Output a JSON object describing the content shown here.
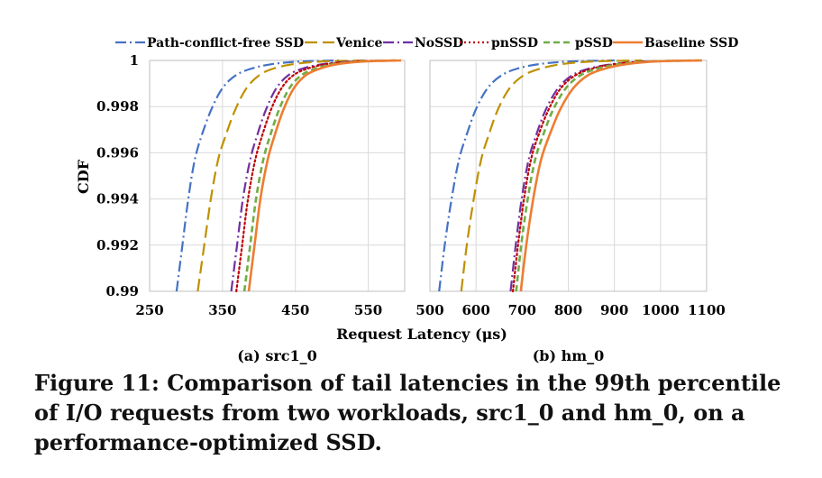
{
  "figure": {
    "caption": "Figure 11: Comparison of tail latencies in the 99th percentile of I/O requests from two workloads, src1_0 and hm_0, on a performance-optimized SSD.",
    "ylabel": "CDF",
    "xlabel": "Request Latency (μs)"
  },
  "legend": [
    {
      "name": "Path-conflict-free SSD",
      "color": "#4472C4",
      "dash": "dashdot"
    },
    {
      "name": "Venice",
      "color": "#BF9000",
      "dash": "longdash"
    },
    {
      "name": "NoSSD",
      "color": "#7030A0",
      "dash": "dashdot"
    },
    {
      "name": "pnSSD",
      "color": "#C00000",
      "dash": "dotted"
    },
    {
      "name": "pSSD",
      "color": "#70AD47",
      "dash": "dashed"
    },
    {
      "name": "Baseline SSD",
      "color": "#ED7D31",
      "dash": "solid"
    }
  ],
  "chart_data": [
    {
      "type": "line",
      "panel_label": "(a) src1_0",
      "xlim": [
        250,
        600
      ],
      "ylim": [
        0.99,
        1.0
      ],
      "xticks": [
        250,
        350,
        450,
        550
      ],
      "xtick_labels": [
        "250",
        "350",
        "450",
        "550"
      ],
      "yticks": [
        0.99,
        0.992,
        0.994,
        0.996,
        0.998,
        1.0
      ],
      "ytick_labels": [
        "0.99",
        "0.992",
        "0.994",
        "0.996",
        "0.998",
        "1"
      ],
      "series": [
        {
          "name": "Path-conflict-free SSD",
          "x": [
            287,
            295,
            303,
            312,
            322,
            335,
            350,
            368,
            390,
            420,
            460,
            510
          ],
          "y": [
            0.99,
            0.992,
            0.994,
            0.9957,
            0.9968,
            0.9979,
            0.9988,
            0.99935,
            0.99965,
            0.99985,
            0.99996,
            1.0
          ]
        },
        {
          "name": "Venice",
          "x": [
            316,
            325,
            334,
            344,
            355,
            368,
            383,
            400,
            420,
            450,
            490,
            550
          ],
          "y": [
            0.99,
            0.992,
            0.994,
            0.9957,
            0.9968,
            0.9979,
            0.9988,
            0.99935,
            0.99965,
            0.99985,
            0.99996,
            1.0
          ]
        },
        {
          "name": "NoSSD",
          "x": [
            362,
            370,
            378,
            388,
            398,
            410,
            424,
            440,
            460,
            490,
            530,
            580
          ],
          "y": [
            0.99,
            0.992,
            0.994,
            0.9957,
            0.9968,
            0.9979,
            0.9988,
            0.99935,
            0.99965,
            0.99985,
            0.99996,
            1.0
          ]
        },
        {
          "name": "pnSSD",
          "x": [
            369,
            377,
            385,
            395,
            405,
            417,
            431,
            447,
            467,
            495,
            535,
            585
          ],
          "y": [
            0.99,
            0.992,
            0.994,
            0.9957,
            0.9968,
            0.9979,
            0.9988,
            0.99935,
            0.99965,
            0.99985,
            0.99996,
            1.0
          ]
        },
        {
          "name": "pSSD",
          "x": [
            380,
            388,
            396,
            406,
            416,
            428,
            442,
            458,
            478,
            505,
            543,
            590
          ],
          "y": [
            0.99,
            0.992,
            0.994,
            0.9957,
            0.9968,
            0.9979,
            0.9988,
            0.99935,
            0.99965,
            0.99985,
            0.99996,
            1.0
          ]
        },
        {
          "name": "Baseline SSD",
          "x": [
            386,
            394,
            402,
            412,
            422,
            434,
            448,
            464,
            484,
            510,
            548,
            595
          ],
          "y": [
            0.99,
            0.992,
            0.994,
            0.9957,
            0.9968,
            0.9979,
            0.9988,
            0.99935,
            0.99965,
            0.99985,
            0.99996,
            1.0
          ]
        }
      ]
    },
    {
      "type": "line",
      "panel_label": "(b) hm_0",
      "xlim": [
        500,
        1100
      ],
      "ylim": [
        0.99,
        1.0
      ],
      "xticks": [
        500,
        600,
        700,
        800,
        900,
        1000,
        1100
      ],
      "xtick_labels": [
        "500",
        "600",
        "700",
        "800",
        "900",
        "1000",
        "1100"
      ],
      "yticks": [
        0.99,
        0.992,
        0.994,
        0.996,
        0.998,
        1.0
      ],
      "ytick_labels": [
        "0.99",
        "0.992",
        "0.994",
        "0.996",
        "0.998",
        "1"
      ],
      "series": [
        {
          "name": "Path-conflict-free SSD",
          "x": [
            520,
            532,
            547,
            563,
            580,
            600,
            625,
            655,
            690,
            740,
            810,
            900
          ],
          "y": [
            0.99,
            0.992,
            0.994,
            0.9957,
            0.9968,
            0.9979,
            0.9988,
            0.99935,
            0.99965,
            0.99985,
            0.99996,
            1.0
          ]
        },
        {
          "name": "Venice",
          "x": [
            568,
            580,
            595,
            611,
            628,
            648,
            673,
            703,
            740,
            790,
            860,
            960
          ],
          "y": [
            0.99,
            0.992,
            0.994,
            0.9957,
            0.9968,
            0.9979,
            0.9988,
            0.99935,
            0.99965,
            0.99985,
            0.99996,
            1.0
          ]
        },
        {
          "name": "NoSSD",
          "x": [
            675,
            686,
            699,
            714,
            731,
            752,
            778,
            808,
            845,
            900,
            975,
            1080
          ],
          "y": [
            0.99,
            0.992,
            0.994,
            0.9957,
            0.9968,
            0.9979,
            0.9988,
            0.99935,
            0.99965,
            0.99985,
            0.99996,
            1.0
          ]
        },
        {
          "name": "pnSSD",
          "x": [
            680,
            691,
            704,
            719,
            736,
            758,
            784,
            815,
            853,
            905,
            978,
            1082
          ],
          "y": [
            0.99,
            0.992,
            0.994,
            0.9957,
            0.9968,
            0.9979,
            0.9988,
            0.99935,
            0.99965,
            0.99985,
            0.99996,
            1.0
          ]
        },
        {
          "name": "pSSD",
          "x": [
            687,
            698,
            712,
            728,
            746,
            768,
            795,
            826,
            864,
            915,
            985,
            1085
          ],
          "y": [
            0.99,
            0.992,
            0.994,
            0.9957,
            0.9968,
            0.9979,
            0.9988,
            0.99935,
            0.99965,
            0.99985,
            0.99996,
            1.0
          ]
        },
        {
          "name": "Baseline SSD",
          "x": [
            697,
            709,
            724,
            741,
            760,
            783,
            811,
            842,
            880,
            930,
            995,
            1090
          ],
          "y": [
            0.99,
            0.992,
            0.994,
            0.9957,
            0.9968,
            0.9979,
            0.9988,
            0.99935,
            0.99965,
            0.99985,
            0.99996,
            1.0
          ]
        }
      ]
    }
  ]
}
